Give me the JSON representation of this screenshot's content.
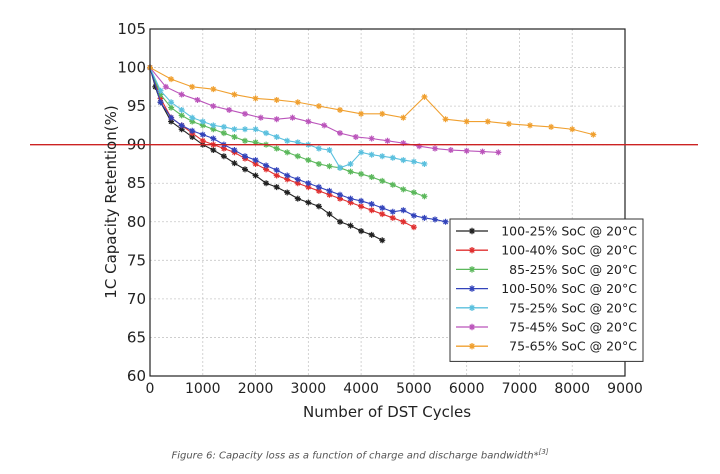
{
  "caption": {
    "text": "Figure 6: Capacity loss as a function of charge and discharge bandwidth*",
    "ref": "[3]"
  },
  "chart_data": {
    "type": "line",
    "xlabel": "Number of DST Cycles",
    "ylabel": "1C Capacity Retention(%)",
    "xlim": [
      0,
      9000
    ],
    "ylim": [
      60,
      105
    ],
    "xticks": [
      0,
      1000,
      2000,
      3000,
      4000,
      5000,
      6000,
      7000,
      8000,
      9000
    ],
    "yticks": [
      60,
      65,
      70,
      75,
      80,
      85,
      90,
      95,
      100,
      105
    ],
    "grid": true,
    "legend_position": "bottom-right",
    "reference_line": {
      "y": 90,
      "color": "#cc2222"
    },
    "series": [
      {
        "name": "100-25% SoC @ 20°C",
        "color": "#222222",
        "marker": "star",
        "x": [
          0,
          100,
          200,
          400,
          600,
          800,
          1000,
          1200,
          1400,
          1600,
          1800,
          2000,
          2200,
          2400,
          2600,
          2800,
          3000,
          3200,
          3400,
          3600,
          3800,
          4000,
          4200,
          4400
        ],
        "y": [
          100,
          97.5,
          95.5,
          93,
          92,
          91,
          90,
          89.3,
          88.5,
          87.6,
          86.8,
          86,
          85,
          84.5,
          83.8,
          83,
          82.5,
          82,
          81,
          80,
          79.5,
          78.8,
          78.3,
          77.6
        ]
      },
      {
        "name": "100-40% SoC @ 20°C",
        "color": "#e03030",
        "marker": "star",
        "x": [
          0,
          200,
          400,
          600,
          800,
          1000,
          1200,
          1400,
          1600,
          1800,
          2000,
          2200,
          2400,
          2600,
          2800,
          3000,
          3200,
          3400,
          3600,
          3800,
          4000,
          4200,
          4400,
          4600,
          4800,
          5000
        ],
        "y": [
          100,
          96,
          93.5,
          92.5,
          91.5,
          90.5,
          90,
          89.5,
          89,
          88.2,
          87.5,
          86.8,
          86,
          85.5,
          85,
          84.5,
          84,
          83.5,
          83,
          82.5,
          82,
          81.5,
          81,
          80.5,
          80,
          79.3
        ]
      },
      {
        "name": "85-25% SoC @ 20°C",
        "color": "#5cb85c",
        "marker": "star",
        "x": [
          0,
          200,
          400,
          600,
          800,
          1000,
          1200,
          1400,
          1600,
          1800,
          2000,
          2200,
          2400,
          2600,
          2800,
          3000,
          3200,
          3400,
          3600,
          3800,
          4000,
          4200,
          4400,
          4600,
          4800,
          5000,
          5200
        ],
        "y": [
          100,
          96.5,
          94.8,
          93.8,
          93,
          92.5,
          92,
          91.5,
          91,
          90.5,
          90.3,
          90,
          89.5,
          89,
          88.5,
          88,
          87.5,
          87.2,
          87,
          86.5,
          86.2,
          85.8,
          85.3,
          84.8,
          84.2,
          83.8,
          83.3
        ]
      },
      {
        "name": "100-50% SoC @ 20°C",
        "color": "#3344bb",
        "marker": "star",
        "x": [
          0,
          200,
          400,
          600,
          800,
          1000,
          1200,
          1400,
          1600,
          1800,
          2000,
          2200,
          2400,
          2600,
          2800,
          3000,
          3200,
          3400,
          3600,
          3800,
          4000,
          4200,
          4400,
          4600,
          4800,
          5000,
          5200,
          5400,
          5600
        ],
        "y": [
          100,
          95.5,
          93.5,
          92.5,
          91.8,
          91.3,
          90.8,
          90,
          89.3,
          88.5,
          88,
          87.3,
          86.7,
          86,
          85.5,
          85,
          84.5,
          84,
          83.5,
          83,
          82.7,
          82.3,
          81.8,
          81.3,
          81.5,
          80.8,
          80.5,
          80.3,
          80
        ]
      },
      {
        "name": "75-25% SoC @ 20°C",
        "color": "#5bc0de",
        "marker": "star",
        "x": [
          0,
          200,
          400,
          600,
          800,
          1000,
          1200,
          1400,
          1600,
          1800,
          2000,
          2200,
          2400,
          2600,
          2800,
          3000,
          3200,
          3400,
          3600,
          3800,
          4000,
          4200,
          4400,
          4600,
          4800,
          5000,
          5200
        ],
        "y": [
          100,
          97,
          95.5,
          94.5,
          93.5,
          93,
          92.5,
          92.3,
          92,
          92,
          92,
          91.5,
          91,
          90.5,
          90.3,
          90,
          89.5,
          89.3,
          87,
          87.5,
          89,
          88.7,
          88.5,
          88.3,
          88,
          87.8,
          87.5
        ]
      },
      {
        "name": "75-45% SoC @ 20°C",
        "color": "#bb55bb",
        "marker": "star",
        "x": [
          0,
          300,
          600,
          900,
          1200,
          1500,
          1800,
          2100,
          2400,
          2700,
          3000,
          3300,
          3600,
          3900,
          4200,
          4500,
          4800,
          5100,
          5400,
          5700,
          6000,
          6300,
          6600
        ],
        "y": [
          100,
          97.5,
          96.5,
          95.8,
          95,
          94.5,
          94,
          93.5,
          93.3,
          93.5,
          93,
          92.5,
          91.5,
          91,
          90.8,
          90.5,
          90.2,
          89.8,
          89.5,
          89.3,
          89.2,
          89.1,
          89
        ]
      },
      {
        "name": "75-65% SoC @ 20°C",
        "color": "#f0a030",
        "marker": "star",
        "x": [
          0,
          400,
          800,
          1200,
          1600,
          2000,
          2400,
          2800,
          3200,
          3600,
          4000,
          4400,
          4800,
          5200,
          5600,
          6000,
          6400,
          6800,
          7200,
          7600,
          8000,
          8400
        ],
        "y": [
          100,
          98.5,
          97.5,
          97.2,
          96.5,
          96,
          95.8,
          95.5,
          95,
          94.5,
          94,
          94,
          93.5,
          96.2,
          93.3,
          93,
          93,
          92.7,
          92.5,
          92.3,
          92,
          91.3
        ]
      }
    ]
  }
}
